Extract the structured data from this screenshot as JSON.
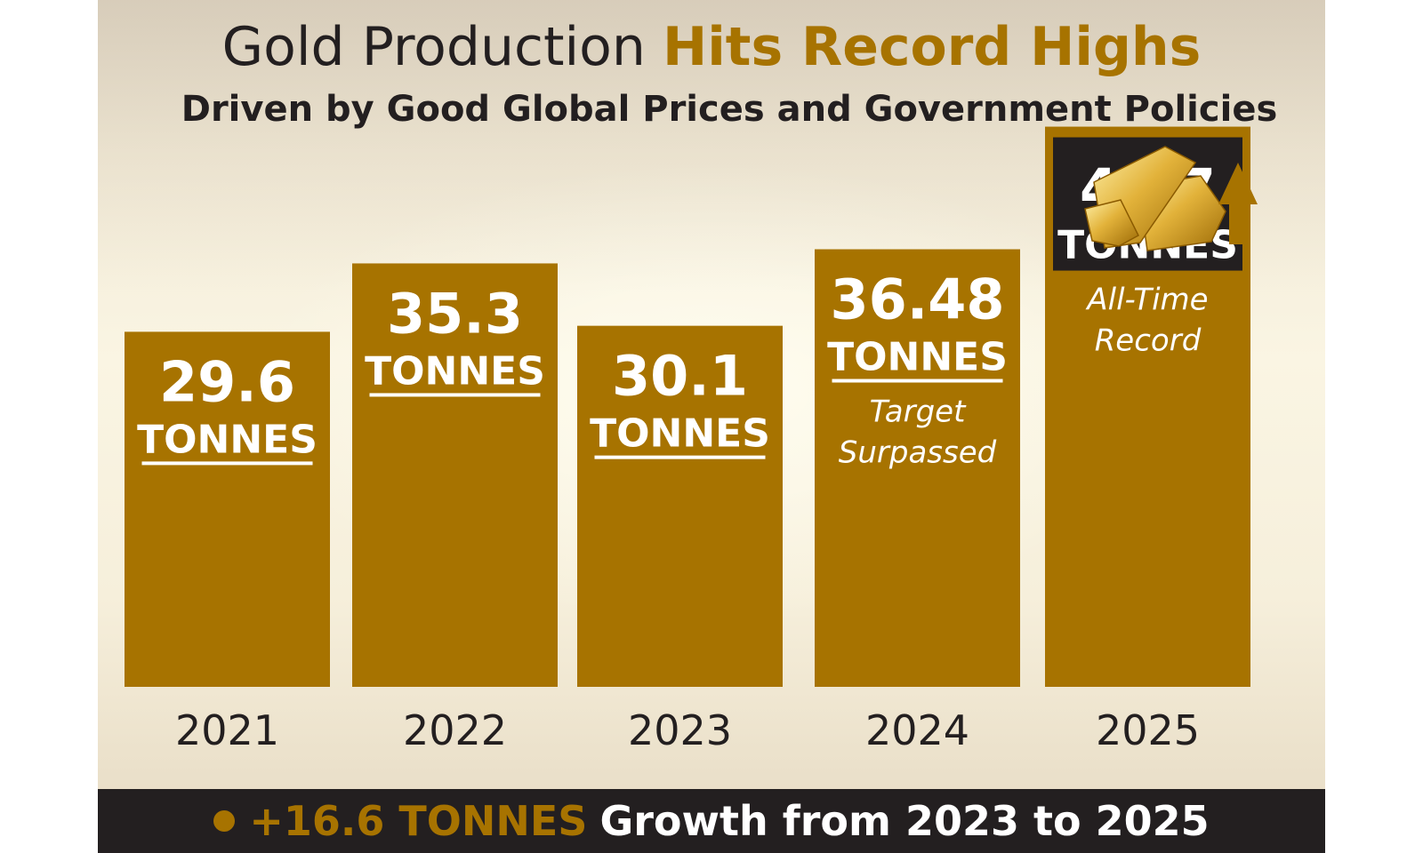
{
  "header": {
    "title_plain": "Gold Production",
    "title_highlight": "Hits Record Highs",
    "subtitle": "Driven by Good Global Prices and Government Policies"
  },
  "footer": {
    "highlight": "+16.6 TONNES",
    "text": "Growth from 2023 to 2025"
  },
  "icons": [
    "gold-bars-icon",
    "up-arrow-icon"
  ],
  "colors": {
    "bar": "#a77300",
    "dark": "#231f20",
    "text_light": "#ffffff"
  },
  "chart_data": {
    "type": "bar",
    "categories": [
      "2021",
      "2022",
      "2023",
      "2024",
      "2025"
    ],
    "values": [
      29.6,
      35.3,
      30.1,
      36.48,
      46.7
    ],
    "value_labels": [
      "29.6",
      "35.3",
      "30.1",
      "36.48",
      "46.7"
    ],
    "unit_label": "TONNES",
    "annotations": [
      {
        "category": "2024",
        "lines": [
          "Target",
          "Surpassed"
        ]
      },
      {
        "category": "2025",
        "lines": [
          "All-Time",
          "Record"
        ]
      }
    ],
    "title": "",
    "xlabel": "",
    "ylabel": "",
    "ylim": [
      0,
      48
    ],
    "grid": false,
    "legend": "none"
  }
}
